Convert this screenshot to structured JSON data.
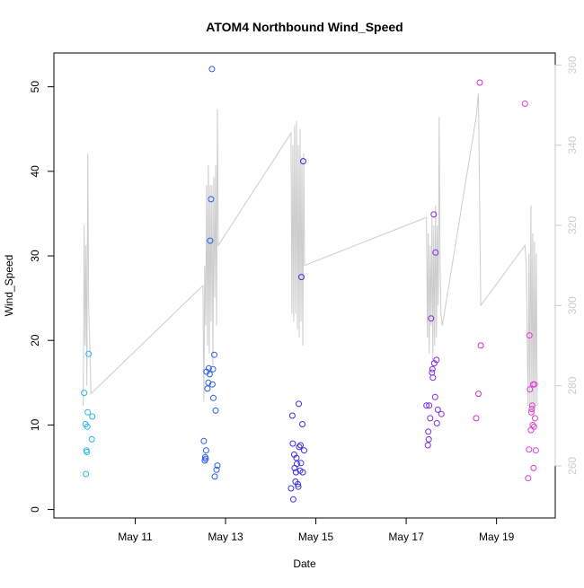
{
  "chart_data": {
    "type": "scatter",
    "title": "ATOM4 Northbound Wind_Speed",
    "xlabel": "Date",
    "ylabel": "Wind_Speed",
    "x_ticks": [
      "May 11",
      "May 13",
      "May 15",
      "May 17",
      "May 19"
    ],
    "x_tick_values": [
      11,
      13,
      15,
      17,
      19
    ],
    "xlim": [
      9.2,
      20.3
    ],
    "y_ticks": [
      0,
      10,
      20,
      30,
      40,
      50
    ],
    "ylim": [
      -1,
      54
    ],
    "y2_ticks": [
      260,
      280,
      300,
      320,
      340,
      360
    ],
    "y2lim": [
      247,
      363
    ],
    "y2_color": "#cccccc",
    "grid": false,
    "legend": "none",
    "points": [
      [
        9.87,
        13.8,
        "#26b9e6"
      ],
      [
        9.9,
        10.1,
        "#26b9e6"
      ],
      [
        9.92,
        7.0,
        "#26b9e6"
      ],
      [
        9.93,
        6.8,
        "#26b9e6"
      ],
      [
        9.94,
        9.8,
        "#26b9e6"
      ],
      [
        9.91,
        4.2,
        "#26b9e6"
      ],
      [
        9.95,
        11.5,
        "#26b9e6"
      ],
      [
        9.97,
        18.4,
        "#26b9e6"
      ],
      [
        10.05,
        11.0,
        "#26b9e6"
      ],
      [
        10.04,
        8.3,
        "#26b9e6"
      ],
      [
        12.52,
        8.1,
        "#2a5ee8"
      ],
      [
        12.54,
        5.8,
        "#2a5ee8"
      ],
      [
        12.55,
        6.2,
        "#2a5ee8"
      ],
      [
        12.56,
        6.0,
        "#2a5ee8"
      ],
      [
        12.57,
        7.0,
        "#2a5ee8"
      ],
      [
        12.58,
        16.3,
        "#2a5ee8"
      ],
      [
        12.6,
        14.3,
        "#2a5ee8"
      ],
      [
        12.62,
        15.0,
        "#2a5ee8"
      ],
      [
        12.63,
        16.7,
        "#2a5ee8"
      ],
      [
        12.65,
        16.0,
        "#2a5ee8"
      ],
      [
        12.66,
        31.8,
        "#2a5ee8"
      ],
      [
        12.68,
        36.7,
        "#2a5ee8"
      ],
      [
        12.7,
        52.1,
        "#2a5ee8"
      ],
      [
        12.71,
        14.8,
        "#2a5ee8"
      ],
      [
        12.72,
        16.6,
        "#2a5ee8"
      ],
      [
        12.73,
        13.2,
        "#2a5ee8"
      ],
      [
        12.75,
        18.3,
        "#2a5ee8"
      ],
      [
        12.76,
        3.9,
        "#2a5ee8"
      ],
      [
        12.78,
        11.7,
        "#2a5ee8"
      ],
      [
        12.8,
        4.7,
        "#2a5ee8"
      ],
      [
        12.82,
        5.2,
        "#2a5ee8"
      ],
      [
        14.45,
        2.5,
        "#3a2ee0"
      ],
      [
        14.48,
        11.1,
        "#3a2ee0"
      ],
      [
        14.49,
        7.8,
        "#3a2ee0"
      ],
      [
        14.5,
        1.2,
        "#3a2ee0"
      ],
      [
        14.52,
        6.5,
        "#3a2ee0"
      ],
      [
        14.53,
        4.9,
        "#3a2ee0"
      ],
      [
        14.55,
        3.3,
        "#3a2ee0"
      ],
      [
        14.56,
        4.4,
        "#3a2ee0"
      ],
      [
        14.57,
        6.1,
        "#3a2ee0"
      ],
      [
        14.58,
        5.4,
        "#3a2ee0"
      ],
      [
        14.6,
        3.0,
        "#3a2ee0"
      ],
      [
        14.61,
        2.7,
        "#3a2ee0"
      ],
      [
        14.62,
        12.5,
        "#3a2ee0"
      ],
      [
        14.63,
        7.4,
        "#3a2ee0"
      ],
      [
        14.65,
        4.6,
        "#3a2ee0"
      ],
      [
        14.66,
        7.6,
        "#3a2ee0"
      ],
      [
        14.67,
        5.5,
        "#3a2ee0"
      ],
      [
        14.68,
        27.5,
        "#3a2ee0"
      ],
      [
        14.7,
        10.1,
        "#3a2ee0"
      ],
      [
        14.71,
        4.4,
        "#3a2ee0"
      ],
      [
        14.72,
        41.2,
        "#3a2ee0"
      ],
      [
        14.74,
        7.0,
        "#3a2ee0"
      ],
      [
        17.45,
        12.3,
        "#7f29e8"
      ],
      [
        17.48,
        7.6,
        "#7f29e8"
      ],
      [
        17.49,
        9.2,
        "#7f29e8"
      ],
      [
        17.5,
        8.3,
        "#7f29e8"
      ],
      [
        17.51,
        12.3,
        "#7f29e8"
      ],
      [
        17.53,
        10.8,
        "#7f29e8"
      ],
      [
        17.55,
        22.6,
        "#7f29e8"
      ],
      [
        17.57,
        16.2,
        "#7f29e8"
      ],
      [
        17.58,
        16.6,
        "#7f29e8"
      ],
      [
        17.59,
        15.6,
        "#7f29e8"
      ],
      [
        17.61,
        34.9,
        "#7f29e8"
      ],
      [
        17.62,
        17.3,
        "#7f29e8"
      ],
      [
        17.64,
        13.3,
        "#7f29e8"
      ],
      [
        17.65,
        30.4,
        "#7f29e8"
      ],
      [
        17.67,
        17.7,
        "#7f29e8"
      ],
      [
        17.68,
        10.2,
        "#7f29e8"
      ],
      [
        17.7,
        11.8,
        "#7f29e8"
      ],
      [
        17.78,
        11.3,
        "#7f29e8"
      ],
      [
        18.55,
        10.8,
        "#d22ec8"
      ],
      [
        18.6,
        13.7,
        "#d22ec8"
      ],
      [
        18.63,
        50.5,
        "#d22ec8"
      ],
      [
        18.65,
        19.4,
        "#d22ec8"
      ],
      [
        19.63,
        48.0,
        "#e03ad6"
      ],
      [
        19.7,
        3.7,
        "#e03ad6"
      ],
      [
        19.72,
        7.1,
        "#e03ad6"
      ],
      [
        19.73,
        20.6,
        "#e03ad6"
      ],
      [
        19.74,
        14.2,
        "#e03ad6"
      ],
      [
        19.76,
        9.4,
        "#e03ad6"
      ],
      [
        19.77,
        11.5,
        "#e03ad6"
      ],
      [
        19.78,
        11.9,
        "#e03ad6"
      ],
      [
        19.79,
        12.3,
        "#e03ad6"
      ],
      [
        19.8,
        10.0,
        "#e03ad6"
      ],
      [
        19.81,
        14.8,
        "#e03ad6"
      ],
      [
        19.82,
        4.9,
        "#e03ad6"
      ],
      [
        19.83,
        9.8,
        "#e03ad6"
      ],
      [
        19.84,
        14.8,
        "#e03ad6"
      ],
      [
        19.85,
        10.8,
        "#e03ad6"
      ],
      [
        19.87,
        7.0,
        "#e03ad6"
      ]
    ],
    "line_secondary": [
      [
        9.85,
        275
      ],
      [
        9.87,
        320
      ],
      [
        9.89,
        290
      ],
      [
        9.91,
        315
      ],
      [
        9.93,
        280
      ],
      [
        9.95,
        338
      ],
      [
        9.97,
        300
      ],
      [
        10.0,
        288
      ],
      [
        10.02,
        278
      ],
      [
        12.5,
        305
      ],
      [
        12.52,
        276
      ],
      [
        12.54,
        310
      ],
      [
        12.56,
        295
      ],
      [
        12.58,
        330
      ],
      [
        12.6,
        290
      ],
      [
        12.62,
        335
      ],
      [
        12.64,
        288
      ],
      [
        12.66,
        330
      ],
      [
        12.68,
        296
      ],
      [
        12.7,
        330
      ],
      [
        12.72,
        285
      ],
      [
        12.74,
        332
      ],
      [
        12.76,
        302
      ],
      [
        12.78,
        335
      ],
      [
        12.8,
        295
      ],
      [
        12.82,
        349
      ],
      [
        12.84,
        315
      ],
      [
        14.45,
        343
      ],
      [
        14.47,
        298
      ],
      [
        14.49,
        340
      ],
      [
        14.51,
        296
      ],
      [
        14.53,
        345
      ],
      [
        14.55,
        298
      ],
      [
        14.57,
        346
      ],
      [
        14.59,
        294
      ],
      [
        14.61,
        340
      ],
      [
        14.63,
        292
      ],
      [
        14.65,
        344
      ],
      [
        14.67,
        296
      ],
      [
        14.69,
        337
      ],
      [
        14.71,
        290
      ],
      [
        14.73,
        338
      ],
      [
        14.75,
        310
      ],
      [
        17.45,
        322
      ],
      [
        17.47,
        292
      ],
      [
        17.49,
        318
      ],
      [
        17.51,
        288
      ],
      [
        17.53,
        315
      ],
      [
        17.55,
        295
      ],
      [
        17.57,
        322
      ],
      [
        17.59,
        286
      ],
      [
        17.61,
        320
      ],
      [
        17.63,
        290
      ],
      [
        17.65,
        325
      ],
      [
        17.67,
        292
      ],
      [
        17.69,
        320
      ],
      [
        17.71,
        300
      ],
      [
        17.73,
        347
      ],
      [
        17.75,
        310
      ],
      [
        17.77,
        298
      ],
      [
        17.8,
        295
      ],
      [
        18.55,
        347
      ],
      [
        18.6,
        353
      ],
      [
        18.65,
        300
      ],
      [
        19.63,
        315
      ],
      [
        19.66,
        310
      ],
      [
        19.7,
        275
      ],
      [
        19.72,
        313
      ],
      [
        19.74,
        275
      ],
      [
        19.76,
        325
      ],
      [
        19.78,
        275
      ],
      [
        19.8,
        318
      ],
      [
        19.82,
        272
      ],
      [
        19.84,
        316
      ],
      [
        19.86,
        275
      ],
      [
        19.88,
        313
      ],
      [
        19.9,
        275
      ]
    ]
  }
}
